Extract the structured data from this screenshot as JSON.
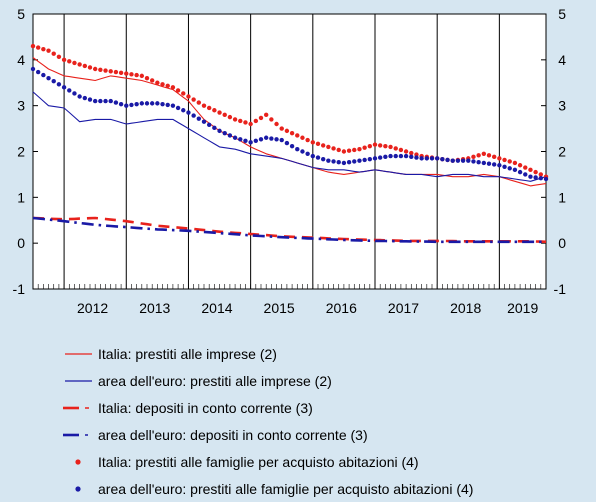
{
  "chart_data": {
    "type": "line",
    "ylim": [
      -1,
      5
    ],
    "yticks": [
      -1,
      0,
      1,
      2,
      3,
      4,
      5
    ],
    "x_start": "2011-07",
    "x_end": "2019-10",
    "year_labels": [
      "2012",
      "2013",
      "2014",
      "2015",
      "2016",
      "2017",
      "2018",
      "2019"
    ],
    "grid": "vertical year separators",
    "legend_position": "bottom",
    "series": [
      {
        "name": "Italia: prestiti alle imprese (2)",
        "style": "solid-thin",
        "color": "#e8221c",
        "points": [
          [
            "2011-07",
            4.05
          ],
          [
            "2011-10",
            3.8
          ],
          [
            "2012-01",
            3.65
          ],
          [
            "2012-04",
            3.6
          ],
          [
            "2012-07",
            3.55
          ],
          [
            "2012-10",
            3.65
          ],
          [
            "2013-01",
            3.6
          ],
          [
            "2013-04",
            3.55
          ],
          [
            "2013-07",
            3.45
          ],
          [
            "2013-10",
            3.35
          ],
          [
            "2014-01",
            3.1
          ],
          [
            "2014-04",
            2.7
          ],
          [
            "2014-07",
            2.45
          ],
          [
            "2014-10",
            2.3
          ],
          [
            "2015-01",
            2.1
          ],
          [
            "2015-04",
            1.95
          ],
          [
            "2015-07",
            1.85
          ],
          [
            "2015-10",
            1.75
          ],
          [
            "2016-01",
            1.65
          ],
          [
            "2016-04",
            1.55
          ],
          [
            "2016-07",
            1.5
          ],
          [
            "2016-10",
            1.55
          ],
          [
            "2017-01",
            1.6
          ],
          [
            "2017-04",
            1.55
          ],
          [
            "2017-07",
            1.5
          ],
          [
            "2017-10",
            1.5
          ],
          [
            "2018-01",
            1.5
          ],
          [
            "2018-04",
            1.45
          ],
          [
            "2018-07",
            1.45
          ],
          [
            "2018-10",
            1.5
          ],
          [
            "2019-01",
            1.45
          ],
          [
            "2019-04",
            1.35
          ],
          [
            "2019-07",
            1.25
          ],
          [
            "2019-10",
            1.3
          ]
        ]
      },
      {
        "name": "area dell'euro: prestiti alle imprese (2)",
        "style": "solid-thin",
        "color": "#1a1aa6",
        "points": [
          [
            "2011-07",
            3.3
          ],
          [
            "2011-10",
            3.0
          ],
          [
            "2012-01",
            2.95
          ],
          [
            "2012-04",
            2.65
          ],
          [
            "2012-07",
            2.7
          ],
          [
            "2012-10",
            2.7
          ],
          [
            "2013-01",
            2.6
          ],
          [
            "2013-04",
            2.65
          ],
          [
            "2013-07",
            2.7
          ],
          [
            "2013-10",
            2.7
          ],
          [
            "2014-01",
            2.5
          ],
          [
            "2014-04",
            2.3
          ],
          [
            "2014-07",
            2.1
          ],
          [
            "2014-10",
            2.05
          ],
          [
            "2015-01",
            1.95
          ],
          [
            "2015-04",
            1.9
          ],
          [
            "2015-07",
            1.85
          ],
          [
            "2015-10",
            1.75
          ],
          [
            "2016-01",
            1.65
          ],
          [
            "2016-04",
            1.6
          ],
          [
            "2016-07",
            1.6
          ],
          [
            "2016-10",
            1.55
          ],
          [
            "2017-01",
            1.6
          ],
          [
            "2017-04",
            1.55
          ],
          [
            "2017-07",
            1.5
          ],
          [
            "2017-10",
            1.5
          ],
          [
            "2018-01",
            1.45
          ],
          [
            "2018-04",
            1.5
          ],
          [
            "2018-07",
            1.5
          ],
          [
            "2018-10",
            1.45
          ],
          [
            "2019-01",
            1.45
          ],
          [
            "2019-04",
            1.4
          ],
          [
            "2019-07",
            1.35
          ],
          [
            "2019-10",
            1.45
          ]
        ]
      },
      {
        "name": "Italia: depositi in conto corrente (3)",
        "style": "dash-red",
        "color": "#e8221c",
        "points": [
          [
            "2011-07",
            0.55
          ],
          [
            "2012-01",
            0.52
          ],
          [
            "2012-07",
            0.55
          ],
          [
            "2013-01",
            0.48
          ],
          [
            "2013-07",
            0.38
          ],
          [
            "2014-01",
            0.32
          ],
          [
            "2014-07",
            0.25
          ],
          [
            "2015-01",
            0.2
          ],
          [
            "2015-07",
            0.15
          ],
          [
            "2016-01",
            0.12
          ],
          [
            "2016-07",
            0.09
          ],
          [
            "2017-01",
            0.07
          ],
          [
            "2017-07",
            0.05
          ],
          [
            "2018-01",
            0.05
          ],
          [
            "2018-07",
            0.04
          ],
          [
            "2019-01",
            0.04
          ],
          [
            "2019-07",
            0.04
          ],
          [
            "2019-10",
            0.03
          ]
        ]
      },
      {
        "name": "area dell'euro: depositi in conto corrente (3)",
        "style": "dashdot-blue",
        "color": "#1a1aa6",
        "points": [
          [
            "2011-07",
            0.55
          ],
          [
            "2012-01",
            0.48
          ],
          [
            "2012-07",
            0.4
          ],
          [
            "2013-01",
            0.35
          ],
          [
            "2013-07",
            0.3
          ],
          [
            "2014-01",
            0.27
          ],
          [
            "2014-07",
            0.22
          ],
          [
            "2015-01",
            0.17
          ],
          [
            "2015-07",
            0.13
          ],
          [
            "2016-01",
            0.1
          ],
          [
            "2016-07",
            0.07
          ],
          [
            "2017-01",
            0.05
          ],
          [
            "2017-07",
            0.04
          ],
          [
            "2018-01",
            0.03
          ],
          [
            "2018-07",
            0.03
          ],
          [
            "2019-01",
            0.03
          ],
          [
            "2019-07",
            0.03
          ],
          [
            "2019-10",
            0.03
          ]
        ]
      },
      {
        "name": "Italia: prestiti alle famiglie per acquisto abitazioni (4)",
        "style": "dots-red",
        "color": "#e8221c",
        "points": [
          [
            "2011-07",
            4.3
          ],
          [
            "2011-10",
            4.2
          ],
          [
            "2012-01",
            4.0
          ],
          [
            "2012-04",
            3.9
          ],
          [
            "2012-07",
            3.8
          ],
          [
            "2012-10",
            3.75
          ],
          [
            "2013-01",
            3.7
          ],
          [
            "2013-04",
            3.65
          ],
          [
            "2013-07",
            3.5
          ],
          [
            "2013-10",
            3.4
          ],
          [
            "2014-01",
            3.2
          ],
          [
            "2014-04",
            3.0
          ],
          [
            "2014-07",
            2.85
          ],
          [
            "2014-10",
            2.7
          ],
          [
            "2015-01",
            2.6
          ],
          [
            "2015-04",
            2.8
          ],
          [
            "2015-07",
            2.5
          ],
          [
            "2015-10",
            2.35
          ],
          [
            "2016-01",
            2.2
          ],
          [
            "2016-04",
            2.1
          ],
          [
            "2016-07",
            2.0
          ],
          [
            "2016-10",
            2.05
          ],
          [
            "2017-01",
            2.15
          ],
          [
            "2017-04",
            2.1
          ],
          [
            "2017-07",
            2.0
          ],
          [
            "2017-10",
            1.9
          ],
          [
            "2018-01",
            1.85
          ],
          [
            "2018-04",
            1.8
          ],
          [
            "2018-07",
            1.85
          ],
          [
            "2018-10",
            1.95
          ],
          [
            "2019-01",
            1.85
          ],
          [
            "2019-04",
            1.75
          ],
          [
            "2019-07",
            1.6
          ],
          [
            "2019-10",
            1.45
          ]
        ]
      },
      {
        "name": "area dell'euro: prestiti alle famiglie per acquisto abitazioni (4)",
        "style": "dots-blue",
        "color": "#1a1aa6",
        "points": [
          [
            "2011-07",
            3.8
          ],
          [
            "2011-10",
            3.6
          ],
          [
            "2012-01",
            3.4
          ],
          [
            "2012-04",
            3.2
          ],
          [
            "2012-07",
            3.1
          ],
          [
            "2012-10",
            3.1
          ],
          [
            "2013-01",
            3.0
          ],
          [
            "2013-04",
            3.05
          ],
          [
            "2013-07",
            3.05
          ],
          [
            "2013-10",
            3.0
          ],
          [
            "2014-01",
            2.85
          ],
          [
            "2014-04",
            2.65
          ],
          [
            "2014-07",
            2.45
          ],
          [
            "2014-10",
            2.3
          ],
          [
            "2015-01",
            2.2
          ],
          [
            "2015-04",
            2.3
          ],
          [
            "2015-07",
            2.25
          ],
          [
            "2015-10",
            2.05
          ],
          [
            "2016-01",
            1.9
          ],
          [
            "2016-04",
            1.8
          ],
          [
            "2016-07",
            1.75
          ],
          [
            "2016-10",
            1.8
          ],
          [
            "2017-01",
            1.85
          ],
          [
            "2017-04",
            1.9
          ],
          [
            "2017-07",
            1.9
          ],
          [
            "2017-10",
            1.85
          ],
          [
            "2018-01",
            1.85
          ],
          [
            "2018-04",
            1.8
          ],
          [
            "2018-07",
            1.8
          ],
          [
            "2018-10",
            1.75
          ],
          [
            "2019-01",
            1.7
          ],
          [
            "2019-04",
            1.6
          ],
          [
            "2019-07",
            1.45
          ],
          [
            "2019-10",
            1.4
          ]
        ]
      }
    ]
  }
}
